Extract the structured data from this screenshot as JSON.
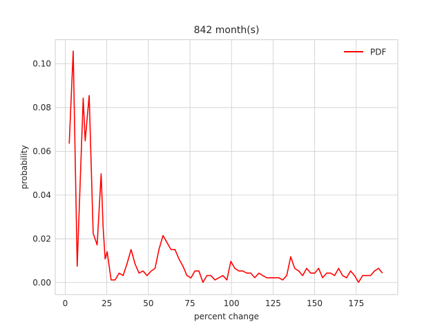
{
  "chart_data": {
    "type": "line",
    "title": "842 month(s)",
    "xlabel": "percent change",
    "ylabel": "probability",
    "xlim": [
      -6,
      200
    ],
    "ylim": [
      -0.0055,
      0.111
    ],
    "xticks": [
      0,
      25,
      50,
      75,
      100,
      125,
      150,
      175
    ],
    "yticks": [
      0.0,
      0.02,
      0.04,
      0.06,
      0.08,
      0.1
    ],
    "ytick_labels": [
      "0.00",
      "0.02",
      "0.04",
      "0.06",
      "0.08",
      "0.10"
    ],
    "grid": true,
    "legend_position": "top-right",
    "series": [
      {
        "name": "PDF",
        "color": "#ff0000",
        "x": [
          2.4,
          4.8,
          7.2,
          9.6,
          10.8,
          12.0,
          14.4,
          16.8,
          19.2,
          21.6,
          22.8,
          24.0,
          25.2,
          27.6,
          30.0,
          32.4,
          34.8,
          37.2,
          39.6,
          42.0,
          44.4,
          46.8,
          49.2,
          51.6,
          54.0,
          56.4,
          58.8,
          61.2,
          63.6,
          66.0,
          68.4,
          70.8,
          73.2,
          75.6,
          78.0,
          80.4,
          82.8,
          85.2,
          87.6,
          90.0,
          92.4,
          94.8,
          97.2,
          99.6,
          102.0,
          104.4,
          106.8,
          109.2,
          111.6,
          114.0,
          116.4,
          118.8,
          121.2,
          123.6,
          126.0,
          128.4,
          130.8,
          133.2,
          135.6,
          138.0,
          140.4,
          142.8,
          145.2,
          147.6,
          150.0,
          152.4,
          154.8,
          157.2,
          159.6,
          162.0,
          164.4,
          166.8,
          169.2,
          171.6,
          174.0,
          176.4,
          178.8,
          181.2,
          183.6,
          186.0,
          188.4,
          190.8
        ],
        "y": [
          0.0635,
          0.1058,
          0.0075,
          0.0587,
          0.0843,
          0.0648,
          0.0855,
          0.0225,
          0.0172,
          0.0497,
          0.0251,
          0.0108,
          0.0141,
          0.0012,
          0.0012,
          0.0043,
          0.0032,
          0.0087,
          0.0151,
          0.0085,
          0.0043,
          0.0053,
          0.0032,
          0.0052,
          0.0065,
          0.0152,
          0.0215,
          0.0183,
          0.0151,
          0.0151,
          0.0108,
          0.0075,
          0.0032,
          0.0021,
          0.0053,
          0.0053,
          0.0001,
          0.0032,
          0.0032,
          0.0012,
          0.0022,
          0.0032,
          0.0012,
          0.0097,
          0.0065,
          0.0053,
          0.0053,
          0.0043,
          0.0043,
          0.0022,
          0.0043,
          0.0032,
          0.0022,
          0.0022,
          0.0022,
          0.0022,
          0.0012,
          0.0032,
          0.0118,
          0.0065,
          0.0053,
          0.0032,
          0.0065,
          0.0043,
          0.0043,
          0.0065,
          0.0022,
          0.0043,
          0.0043,
          0.0032,
          0.0065,
          0.0032,
          0.0022,
          0.0053,
          0.0032,
          0.0001,
          0.0032,
          0.0032,
          0.0032,
          0.0053,
          0.0065,
          0.0043
        ]
      }
    ]
  }
}
